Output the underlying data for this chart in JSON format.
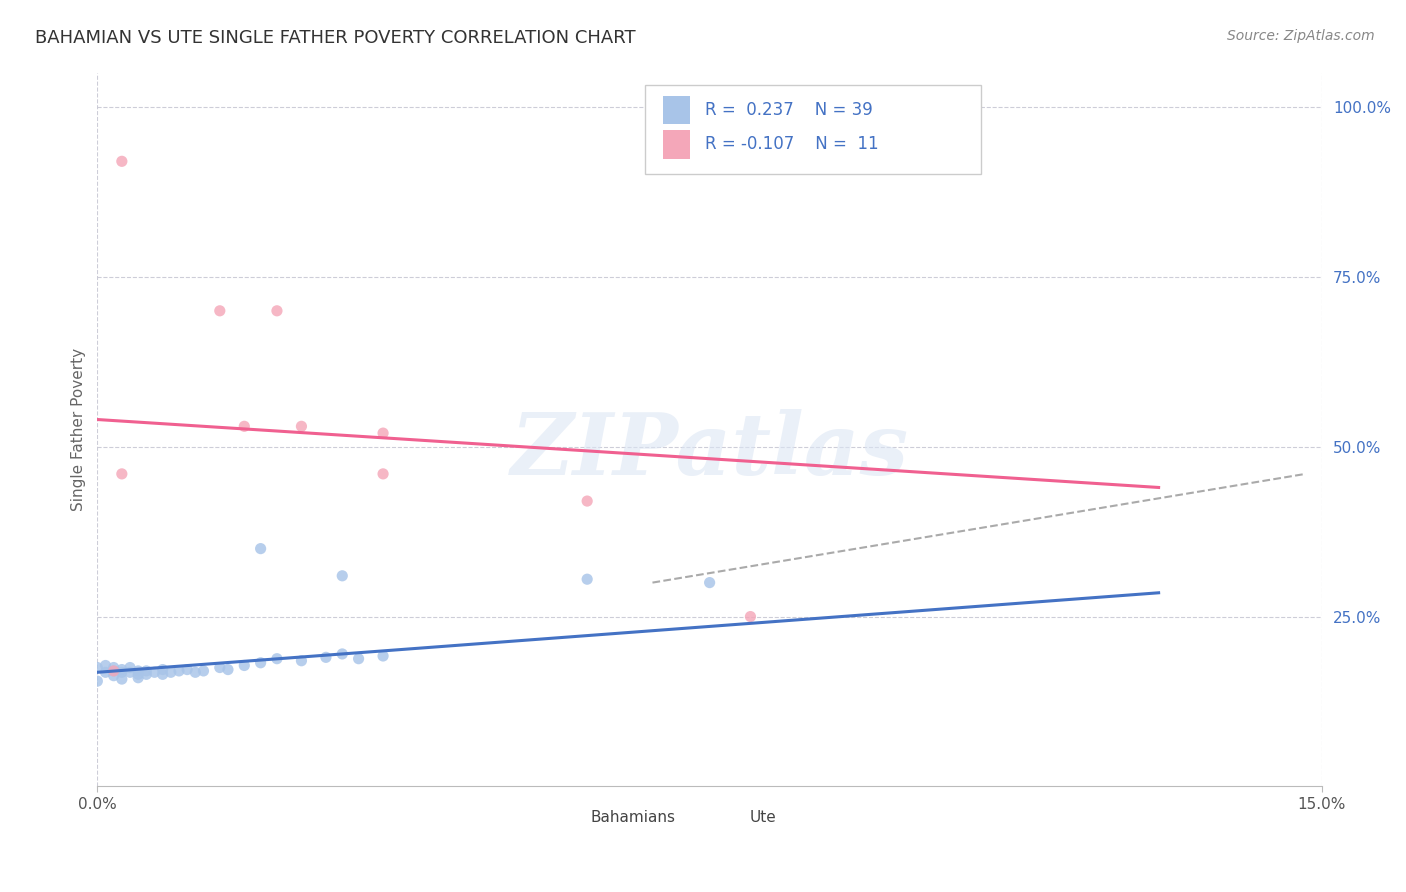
{
  "title": "BAHAMIAN VS UTE SINGLE FATHER POVERTY CORRELATION CHART",
  "source": "Source: ZipAtlas.com",
  "ylabel_label": "Single Father Poverty",
  "xlim": [
    0.0,
    0.15
  ],
  "ylim": [
    0.0,
    1.05
  ],
  "watermark": "ZIPatlas",
  "bahamian_color": "#a8c4e8",
  "ute_color": "#f4a7b9",
  "bahamian_line_color": "#4472c4",
  "ute_line_color": "#f06090",
  "trend_line_color": "#aaaaaa",
  "background_color": "#ffffff",
  "grid_color": "#c8c8d4",
  "text_color": "#4472c4",
  "title_color": "#3a3a3a",
  "bahamian_scatter": [
    [
      0.0,
      0.155
    ],
    [
      0.0,
      0.175
    ],
    [
      0.001,
      0.168
    ],
    [
      0.001,
      0.178
    ],
    [
      0.002,
      0.17
    ],
    [
      0.002,
      0.163
    ],
    [
      0.002,
      0.175
    ],
    [
      0.003,
      0.168
    ],
    [
      0.003,
      0.172
    ],
    [
      0.003,
      0.158
    ],
    [
      0.004,
      0.168
    ],
    [
      0.004,
      0.175
    ],
    [
      0.005,
      0.165
    ],
    [
      0.005,
      0.17
    ],
    [
      0.005,
      0.16
    ],
    [
      0.006,
      0.17
    ],
    [
      0.006,
      0.165
    ],
    [
      0.007,
      0.168
    ],
    [
      0.008,
      0.172
    ],
    [
      0.008,
      0.165
    ],
    [
      0.009,
      0.168
    ],
    [
      0.01,
      0.17
    ],
    [
      0.011,
      0.172
    ],
    [
      0.012,
      0.168
    ],
    [
      0.013,
      0.17
    ],
    [
      0.015,
      0.175
    ],
    [
      0.016,
      0.172
    ],
    [
      0.018,
      0.178
    ],
    [
      0.02,
      0.182
    ],
    [
      0.022,
      0.188
    ],
    [
      0.025,
      0.185
    ],
    [
      0.028,
      0.19
    ],
    [
      0.03,
      0.195
    ],
    [
      0.032,
      0.188
    ],
    [
      0.035,
      0.192
    ],
    [
      0.02,
      0.35
    ],
    [
      0.03,
      0.31
    ],
    [
      0.06,
      0.305
    ],
    [
      0.075,
      0.3
    ]
  ],
  "ute_scatter": [
    [
      0.003,
      0.92
    ],
    [
      0.015,
      0.7
    ],
    [
      0.022,
      0.7
    ],
    [
      0.018,
      0.53
    ],
    [
      0.025,
      0.53
    ],
    [
      0.035,
      0.52
    ],
    [
      0.035,
      0.46
    ],
    [
      0.003,
      0.46
    ],
    [
      0.06,
      0.42
    ],
    [
      0.002,
      0.17
    ],
    [
      0.08,
      0.25
    ]
  ],
  "bahamian_trend_x": [
    0.0,
    0.13
  ],
  "bahamian_trend_y": [
    0.168,
    0.285
  ],
  "ute_trend_x": [
    0.0,
    0.13
  ],
  "ute_trend_y": [
    0.54,
    0.44
  ],
  "combined_trend_x": [
    0.068,
    0.148
  ],
  "combined_trend_y": [
    0.3,
    0.46
  ]
}
